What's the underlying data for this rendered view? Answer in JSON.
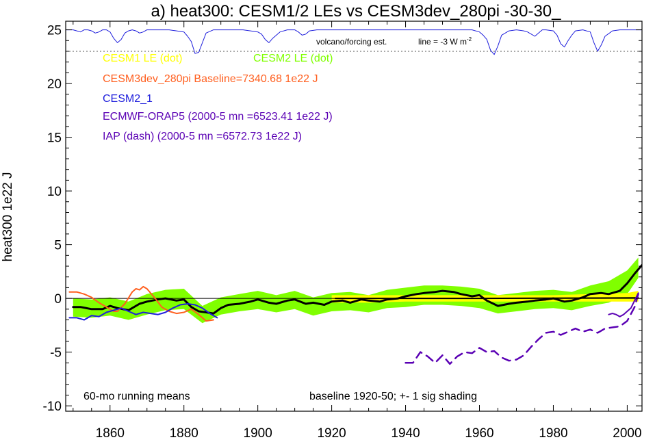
{
  "chart_data": {
    "type": "line",
    "title": "a) heat300: CESM1/2 LEs vs CESM3dev_280pi -30-30_",
    "ylabel": "heat300 1e22 J",
    "xlabel": "",
    "xlim": [
      1848,
      2004
    ],
    "ylim": [
      -10.5,
      25.8
    ],
    "x_ticks": [
      1860,
      1880,
      1900,
      1920,
      1940,
      1960,
      1980,
      2000
    ],
    "y_ticks": [
      -10,
      -5,
      0,
      5,
      10,
      15,
      20,
      25
    ],
    "x_tick_labels": [
      "1860",
      "1880",
      "1900",
      "1920",
      "1940",
      "1960",
      "1980",
      "2000"
    ],
    "y_tick_labels": [
      "-10",
      "-5",
      "0",
      "5",
      "10",
      "15",
      "20",
      "25"
    ],
    "zero_line": 0,
    "legend": [
      {
        "label": "CESM1 LE (dot)",
        "color": "#ffff00"
      },
      {
        "label": "CESM2 LE (dot)",
        "color": "#80ff00"
      },
      {
        "label": "CESM3dev_280pi Baseline=7340.68 1e22 J",
        "color": "#ff5f1f"
      },
      {
        "label": "CESM2_1",
        "color": "#1e1edc"
      },
      {
        "label": "ECMWF-ORAP5 (2000-5 mn =6523.41 1e22 J)",
        "color": "#5a00b4"
      },
      {
        "label": "IAP (dash) (2000-5 mn =6572.73 1e22 J)",
        "color": "#5a00b4"
      }
    ],
    "annotations": {
      "volcano": "volcano/forcing est.",
      "line_prefix": "line = -3 W m",
      "line_sup": "-2",
      "running": "60-mo running means",
      "baseline": "baseline 1920-50; +- 1 sig shading"
    },
    "volcano_ref_y": 23.0,
    "series": [
      {
        "name": "CESM2 LE (dot)",
        "role": "band",
        "color": "#80ff00",
        "x": [
          1850,
          1855,
          1860,
          1865,
          1870,
          1875,
          1880,
          1885,
          1890,
          1895,
          1900,
          1905,
          1910,
          1915,
          1920,
          1925,
          1930,
          1935,
          1940,
          1945,
          1950,
          1955,
          1960,
          1965,
          1970,
          1975,
          1980,
          1985,
          1990,
          1995,
          2000,
          2003
        ],
        "lower": [
          -1.7,
          -1.8,
          -1.6,
          -2.0,
          -1.5,
          -1.1,
          -1.0,
          -2.3,
          -1.5,
          -1.2,
          -1.0,
          -1.3,
          -1.0,
          -1.6,
          -1.2,
          -1.1,
          -1.3,
          -0.9,
          -0.8,
          -0.6,
          -0.6,
          -0.7,
          -0.9,
          -1.4,
          -1.2,
          -1.0,
          -0.9,
          -1.1,
          -0.7,
          -0.4,
          0.4,
          1.9
        ],
        "upper": [
          0.0,
          -0.1,
          0.1,
          -0.3,
          0.4,
          0.8,
          0.9,
          -0.7,
          0.1,
          0.4,
          0.7,
          0.3,
          0.7,
          0.1,
          0.5,
          0.6,
          0.3,
          0.8,
          1.0,
          1.2,
          1.2,
          1.1,
          0.9,
          0.3,
          0.5,
          0.7,
          0.8,
          0.6,
          1.2,
          1.6,
          2.6,
          3.8
        ]
      },
      {
        "name": "CESM1 LE (dot)",
        "role": "band",
        "color": "#ffff00",
        "x": [
          1920,
          1930,
          1940,
          1950,
          1960,
          1970,
          1980,
          1990,
          2000,
          2003
        ],
        "lower": [
          -0.4,
          -0.4,
          -0.3,
          -0.3,
          -0.3,
          -0.3,
          -0.3,
          -0.3,
          -0.3,
          -0.3
        ],
        "upper": [
          0.3,
          0.3,
          0.3,
          0.3,
          0.3,
          0.3,
          0.3,
          0.4,
          0.5,
          0.7
        ]
      },
      {
        "name": "CESM2 LE ensemble mean",
        "role": "line",
        "color": "#000000",
        "width": 3,
        "x": [
          1850,
          1852,
          1855,
          1858,
          1860,
          1862,
          1865,
          1868,
          1870,
          1873,
          1875,
          1878,
          1880,
          1882,
          1884,
          1886,
          1888,
          1890,
          1892,
          1895,
          1898,
          1900,
          1903,
          1905,
          1908,
          1910,
          1913,
          1915,
          1918,
          1920,
          1923,
          1925,
          1928,
          1930,
          1933,
          1935,
          1938,
          1940,
          1943,
          1945,
          1948,
          1950,
          1953,
          1955,
          1958,
          1960,
          1962,
          1965,
          1968,
          1970,
          1973,
          1975,
          1978,
          1980,
          1983,
          1985,
          1988,
          1990,
          1993,
          1995,
          1998,
          2000,
          2002,
          2004
        ],
        "y": [
          -0.8,
          -0.8,
          -1.0,
          -1.0,
          -0.7,
          -0.9,
          -1.1,
          -0.5,
          -0.3,
          -0.1,
          0.0,
          -0.2,
          -0.1,
          -0.8,
          -1.2,
          -1.3,
          -1.4,
          -0.9,
          -0.6,
          -0.5,
          -0.3,
          -0.1,
          -0.4,
          -0.5,
          -0.2,
          -0.1,
          -0.5,
          -0.4,
          -0.6,
          -0.3,
          -0.2,
          -0.4,
          -0.1,
          -0.2,
          -0.3,
          -0.1,
          0.0,
          0.2,
          0.4,
          0.5,
          0.6,
          0.7,
          0.6,
          0.4,
          0.2,
          0.3,
          -0.2,
          -0.7,
          -0.5,
          -0.4,
          -0.3,
          -0.2,
          -0.1,
          0.0,
          -0.3,
          -0.2,
          0.1,
          0.4,
          0.5,
          0.4,
          0.7,
          1.4,
          2.3,
          3.1
        ]
      },
      {
        "name": "CESM3dev_280pi baseline",
        "role": "line",
        "color": "#000000",
        "width": 2,
        "x": [
          1921,
          1960,
          2003
        ],
        "y": [
          0.0,
          0.0,
          0.05
        ]
      },
      {
        "name": "CESM3dev_280pi Baseline=7340.68 1e22 J",
        "role": "line",
        "color": "#ff5f1f",
        "width": 2,
        "x": [
          1849,
          1851,
          1853,
          1855,
          1857,
          1859,
          1861,
          1862,
          1864,
          1866,
          1867,
          1868,
          1869,
          1870,
          1872,
          1874,
          1876,
          1878,
          1880,
          1882,
          1884,
          1886,
          1888
        ],
        "y": [
          0.6,
          0.6,
          0.4,
          0.1,
          -0.4,
          -0.8,
          -1.2,
          -1.2,
          -0.5,
          0.6,
          0.9,
          0.8,
          1.1,
          0.9,
          0.1,
          -0.8,
          -1.2,
          -1.4,
          -1.3,
          -1.0,
          -1.5,
          -2.1,
          -2.0
        ]
      },
      {
        "name": "CESM2_1",
        "role": "line",
        "color": "#1e1edc",
        "width": 2,
        "x": [
          1849,
          1851,
          1853,
          1855,
          1857,
          1859,
          1861,
          1863,
          1865,
          1867,
          1869,
          1871,
          1873,
          1875,
          1877,
          1879,
          1881,
          1883,
          1885,
          1887,
          1889
        ],
        "y": [
          -1.8,
          -1.8,
          -2.0,
          -1.6,
          -1.7,
          -1.3,
          -1.1,
          -0.9,
          -1.2,
          -1.5,
          -1.3,
          -1.4,
          -1.5,
          -1.3,
          -0.9,
          -0.6,
          -0.5,
          -0.6,
          -0.9,
          -1.4,
          -1.8
        ]
      },
      {
        "name": "ECMWF-ORAP5 (2000-5 mn =6523.41 1e22 J)",
        "role": "line",
        "color": "#5a00b4",
        "width": 2,
        "x": [
          1995,
          1996,
          1997,
          1998,
          1999,
          2000,
          2001,
          2002,
          2003
        ],
        "y": [
          -1.5,
          -1.4,
          -1.5,
          -1.7,
          -1.5,
          -1.2,
          -0.9,
          -0.2,
          0.5
        ]
      },
      {
        "name": "IAP (dash) (2000-5 mn =6572.73 1e22 J)",
        "role": "line",
        "color": "#5a00b4",
        "width": 2.5,
        "dash": "12,8",
        "x": [
          1940,
          1942,
          1944,
          1946,
          1948,
          1950,
          1952,
          1954,
          1956,
          1958,
          1960,
          1962,
          1964,
          1966,
          1968,
          1970,
          1972,
          1974,
          1976,
          1978,
          1980,
          1982,
          1984,
          1986,
          1988,
          1990,
          1992,
          1994,
          1996,
          1998,
          2000,
          2002,
          2003
        ],
        "y": [
          -6.0,
          -6.0,
          -5.0,
          -5.4,
          -6.0,
          -5.3,
          -6.1,
          -5.4,
          -5.0,
          -5.1,
          -4.6,
          -5.0,
          -4.9,
          -5.5,
          -5.8,
          -5.7,
          -5.3,
          -4.5,
          -3.8,
          -3.2,
          -3.1,
          -3.4,
          -3.1,
          -2.8,
          -3.1,
          -2.9,
          -3.2,
          -2.8,
          -2.7,
          -2.6,
          -2.1,
          -0.8,
          0.4
        ]
      },
      {
        "name": "volcano/forcing est.",
        "role": "volcano",
        "color": "#1e1edc",
        "width": 1,
        "x": [
          1848,
          1850,
          1851,
          1852,
          1853,
          1854,
          1855,
          1856,
          1857,
          1858,
          1859,
          1860,
          1861,
          1862,
          1863,
          1864,
          1865,
          1866,
          1867,
          1868,
          1869,
          1870,
          1872,
          1874,
          1876,
          1878,
          1880,
          1881,
          1882,
          1883,
          1884,
          1885,
          1886,
          1888,
          1890,
          1892,
          1894,
          1896,
          1898,
          1900,
          1901,
          1902,
          1903,
          1904,
          1906,
          1908,
          1910,
          1911,
          1912,
          1913,
          1914,
          1916,
          1918,
          1920,
          1922,
          1924,
          1926,
          1928,
          1930,
          1932,
          1934,
          1936,
          1938,
          1940,
          1942,
          1944,
          1946,
          1948,
          1950,
          1952,
          1954,
          1956,
          1958,
          1960,
          1961,
          1962,
          1963,
          1964,
          1965,
          1966,
          1968,
          1970,
          1972,
          1973,
          1974,
          1975,
          1976,
          1977,
          1978,
          1980,
          1981,
          1982,
          1983,
          1984,
          1985,
          1986,
          1988,
          1990,
          1991,
          1992,
          1993,
          1994,
          1996,
          1998,
          2000,
          2002,
          2004
        ],
        "y": [
          25.0,
          25.0,
          24.9,
          24.8,
          25.0,
          25.0,
          24.9,
          24.7,
          24.8,
          25.0,
          25.0,
          24.8,
          24.2,
          23.8,
          24.1,
          24.7,
          24.9,
          25.0,
          24.9,
          24.7,
          24.8,
          25.0,
          25.0,
          25.0,
          25.0,
          24.9,
          24.8,
          24.4,
          23.9,
          22.8,
          22.9,
          23.8,
          24.7,
          25.0,
          25.0,
          25.0,
          25.0,
          25.0,
          24.9,
          24.8,
          24.6,
          24.1,
          23.8,
          24.2,
          24.8,
          25.0,
          25.0,
          24.8,
          24.5,
          24.6,
          24.9,
          25.0,
          25.0,
          25.0,
          25.0,
          25.0,
          25.0,
          25.0,
          25.0,
          25.0,
          25.0,
          25.0,
          25.0,
          25.0,
          25.0,
          25.0,
          25.0,
          25.0,
          25.0,
          25.0,
          25.0,
          25.0,
          25.0,
          24.8,
          24.5,
          24.1,
          23.1,
          22.7,
          23.5,
          24.5,
          24.9,
          25.0,
          24.9,
          24.8,
          24.6,
          24.4,
          24.7,
          25.0,
          25.0,
          24.9,
          24.5,
          23.7,
          23.4,
          24.0,
          24.5,
          24.9,
          25.0,
          24.8,
          23.8,
          23.0,
          23.6,
          24.4,
          24.9,
          25.0,
          25.0,
          25.0,
          25.0
        ]
      }
    ]
  }
}
